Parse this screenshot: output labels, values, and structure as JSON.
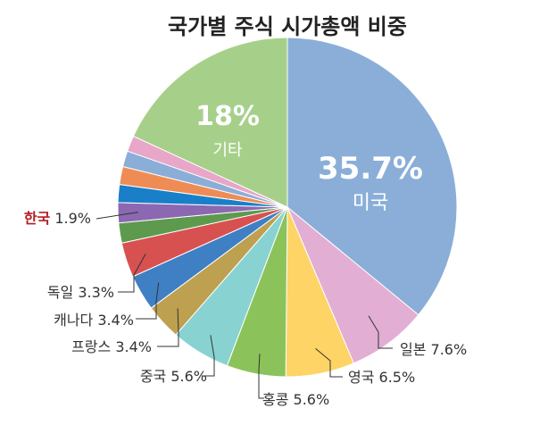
{
  "chart_data": {
    "type": "pie",
    "title": "국가별 주식 시가총액 비중",
    "slices": [
      {
        "name": "미국",
        "value": 35.7,
        "pct_label": "35.7%",
        "color": "#8aaed8",
        "label": "inside"
      },
      {
        "name": "일본",
        "value": 7.6,
        "pct_label": "7.6%",
        "color": "#e2aed3",
        "label": "outside"
      },
      {
        "name": "영국",
        "value": 6.5,
        "pct_label": "6.5%",
        "color": "#fdd465",
        "label": "outside"
      },
      {
        "name": "홍콩",
        "value": 5.6,
        "pct_label": "5.6%",
        "color": "#8bc35a",
        "label": "outside"
      },
      {
        "name": "중국",
        "value": 5.6,
        "pct_label": "5.6%",
        "color": "#88d2d2",
        "label": "outside"
      },
      {
        "name": "프랑스",
        "value": 3.4,
        "pct_label": "3.4%",
        "color": "#bda050",
        "label": "outside"
      },
      {
        "name": "캐나다",
        "value": 3.4,
        "pct_label": "3.4%",
        "color": "#3f7fc4",
        "label": "outside"
      },
      {
        "name": "독일",
        "value": 3.3,
        "pct_label": "3.3%",
        "color": "#d75151",
        "label": "outside"
      },
      {
        "name": "",
        "value": 1.9,
        "pct_label": "",
        "color": "#5d9a4e",
        "label": "none"
      },
      {
        "name": "한국",
        "value": 1.9,
        "pct_label": "1.9%",
        "color": "#8c68b2",
        "label": "outside",
        "name_color": "#b01e23"
      },
      {
        "name": "",
        "value": 1.7,
        "pct_label": "",
        "color": "#1a7fc9",
        "label": "none"
      },
      {
        "name": "",
        "value": 1.7,
        "pct_label": "",
        "color": "#ef8c55",
        "label": "none"
      },
      {
        "name": "",
        "value": 1.5,
        "pct_label": "",
        "color": "#8aaed8",
        "label": "none"
      },
      {
        "name": "",
        "value": 1.5,
        "pct_label": "",
        "color": "#e8a6c8",
        "label": "none"
      },
      {
        "name": "기타",
        "value": 18,
        "pct_label": "18%",
        "color": "#a6d08a",
        "label": "inside"
      }
    ]
  }
}
